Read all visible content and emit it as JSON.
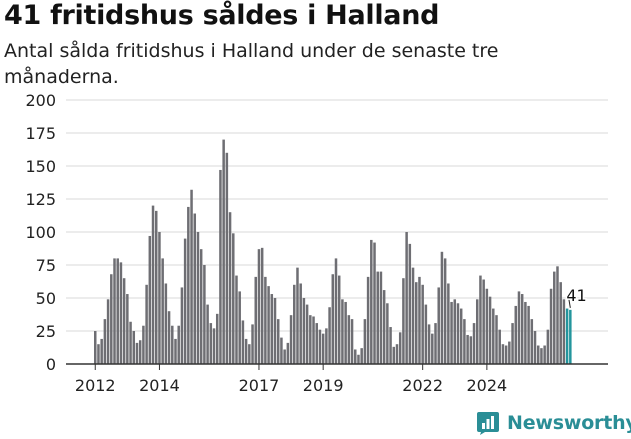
{
  "header": {
    "title": "41 fritidshus såldes i Halland",
    "subtitle": "Antal sålda fritidshus i Halland under de senaste tre månaderna."
  },
  "brand": {
    "name": "Newsworthy",
    "color": "#2a8e96"
  },
  "colors": {
    "bar": "#6e6e73",
    "highlight": "#23959d",
    "grid": "#d9d9d9",
    "axis": "#333333"
  },
  "chart_data": {
    "type": "bar",
    "title": "41 fritidshus såldes i Halland",
    "subtitle": "Antal sålda fritidshus i Halland under de senaste tre månaderna.",
    "xlabel": "",
    "ylabel": "",
    "ylim": [
      0,
      200
    ],
    "yticks": [
      0,
      25,
      50,
      75,
      100,
      125,
      150,
      175,
      200
    ],
    "xticks": [
      {
        "label": "2012",
        "index": 0
      },
      {
        "label": "2014",
        "index": 20
      },
      {
        "label": "2017",
        "index": 51
      },
      {
        "label": "2019",
        "index": 71
      },
      {
        "label": "2022",
        "index": 102
      },
      {
        "label": "2024",
        "index": 122
      }
    ],
    "values": [
      25,
      15,
      19,
      34,
      49,
      68,
      80,
      80,
      77,
      65,
      53,
      32,
      25,
      16,
      18,
      29,
      60,
      97,
      120,
      116,
      100,
      80,
      61,
      40,
      29,
      19,
      29,
      58,
      95,
      119,
      132,
      114,
      100,
      87,
      75,
      45,
      31,
      27,
      38,
      147,
      170,
      160,
      115,
      99,
      67,
      55,
      33,
      19,
      15,
      30,
      66,
      87,
      88,
      66,
      59,
      53,
      50,
      34,
      20,
      11,
      16,
      37,
      60,
      73,
      61,
      50,
      45,
      37,
      36,
      31,
      26,
      23,
      27,
      43,
      68,
      80,
      67,
      49,
      47,
      37,
      34,
      11,
      7,
      12,
      34,
      66,
      94,
      92,
      70,
      70,
      56,
      46,
      28,
      13,
      15,
      24,
      65,
      100,
      91,
      73,
      62,
      66,
      60,
      45,
      30,
      23,
      31,
      58,
      85,
      80,
      61,
      47,
      49,
      46,
      42,
      34,
      22,
      21,
      31,
      49,
      67,
      64,
      57,
      51,
      42,
      37,
      26,
      15,
      14,
      17,
      31,
      44,
      55,
      53,
      47,
      44,
      34,
      25,
      14,
      12,
      14,
      26,
      57,
      70,
      74,
      62,
      49,
      42,
      41
    ],
    "highlight_last": 2,
    "annotation": {
      "label": "41",
      "index": 148
    }
  }
}
